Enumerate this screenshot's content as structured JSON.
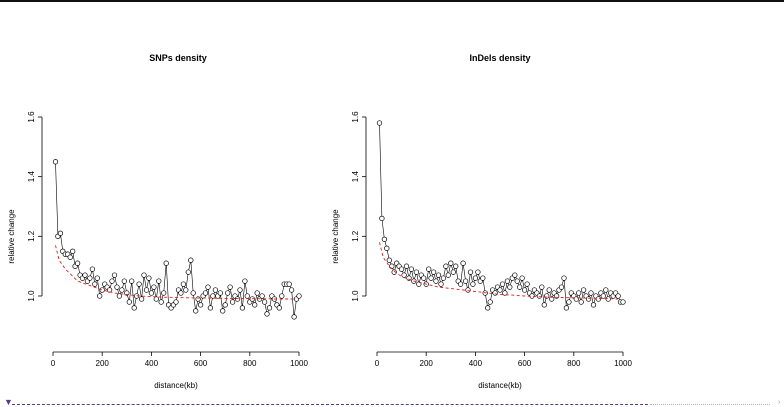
{
  "chart_data": [
    {
      "type": "line",
      "title": "SNPs density",
      "xlabel": "distance(kb)",
      "ylabel": "relative change",
      "xlim": [
        0,
        1000
      ],
      "ylim": [
        0.9,
        1.6
      ],
      "xticks": [
        0,
        200,
        400,
        600,
        800,
        1000
      ],
      "yticks": [
        1.0,
        1.2,
        1.4,
        1.6
      ],
      "grid": false,
      "series": [
        {
          "color": "#000000",
          "marker": "open-circle",
          "x": [
            10,
            20,
            30,
            40,
            50,
            60,
            70,
            80,
            90,
            100,
            110,
            120,
            130,
            140,
            150,
            160,
            170,
            180,
            190,
            200,
            210,
            220,
            230,
            240,
            250,
            260,
            270,
            280,
            290,
            300,
            310,
            320,
            330,
            340,
            350,
            360,
            370,
            380,
            390,
            400,
            410,
            420,
            430,
            440,
            450,
            460,
            470,
            480,
            490,
            500,
            510,
            520,
            530,
            540,
            550,
            560,
            570,
            580,
            590,
            600,
            610,
            620,
            630,
            640,
            650,
            660,
            670,
            680,
            690,
            700,
            710,
            720,
            730,
            740,
            750,
            760,
            770,
            780,
            790,
            800,
            810,
            820,
            830,
            840,
            850,
            860,
            870,
            880,
            890,
            900,
            910,
            920,
            930,
            940,
            950,
            960,
            970,
            980,
            990,
            1000
          ],
          "y": [
            1.45,
            1.2,
            1.21,
            1.15,
            1.14,
            1.14,
            1.13,
            1.15,
            1.1,
            1.11,
            1.07,
            1.06,
            1.07,
            1.05,
            1.06,
            1.09,
            1.04,
            1.06,
            1.0,
            1.02,
            1.04,
            1.03,
            1.02,
            1.05,
            1.07,
            1.03,
            1.0,
            1.02,
            1.05,
            1.01,
            0.98,
            1.05,
            0.96,
            1.0,
            1.04,
            0.99,
            1.07,
            1.02,
            1.06,
            1.01,
            1.03,
            0.99,
            1.05,
            0.98,
            1.01,
            1.11,
            0.97,
            0.96,
            0.97,
            0.98,
            1.02,
            1.01,
            1.04,
            1.02,
            1.08,
            1.12,
            1.01,
            0.95,
            0.99,
            0.97,
            1.0,
            1.01,
            1.03,
            0.96,
            1.0,
            1.02,
            1.0,
            1.01,
            0.95,
            0.97,
            1.01,
            1.03,
            0.98,
            1.0,
            0.99,
            1.02,
            0.96,
            1.05,
            1.0,
            0.98,
            0.99,
            0.97,
            1.01,
            0.99,
            1.0,
            0.98,
            0.94,
            0.96,
            1.0,
            0.99,
            0.97,
            0.96,
            1.0,
            1.04,
            1.04,
            1.04,
            1.02,
            0.93,
            0.99,
            1.0
          ]
        },
        {
          "color": "#e0201b",
          "style": "dashed",
          "x": [
            10,
            25,
            50,
            75,
            100,
            150,
            200,
            250,
            300,
            350,
            400,
            450,
            500,
            550,
            600,
            650,
            700,
            750,
            800,
            850,
            900,
            950,
            980
          ],
          "y": [
            1.17,
            1.12,
            1.09,
            1.07,
            1.05,
            1.035,
            1.02,
            1.01,
            1.005,
            1.0,
            0.998,
            0.996,
            0.995,
            0.994,
            0.993,
            0.993,
            0.992,
            0.992,
            0.991,
            0.991,
            0.99,
            0.99,
            0.99
          ]
        }
      ]
    },
    {
      "type": "line",
      "title": "InDels density",
      "xlabel": "distance(kb)",
      "ylabel": "relative change",
      "xlim": [
        0,
        1000
      ],
      "ylim": [
        0.9,
        1.6
      ],
      "xticks": [
        0,
        200,
        400,
        600,
        800,
        1000
      ],
      "yticks": [
        1.0,
        1.2,
        1.4,
        1.6
      ],
      "grid": false,
      "series": [
        {
          "color": "#000000",
          "marker": "open-circle",
          "x": [
            10,
            20,
            30,
            40,
            50,
            60,
            70,
            80,
            90,
            100,
            110,
            120,
            130,
            140,
            150,
            160,
            170,
            180,
            190,
            200,
            210,
            220,
            230,
            240,
            250,
            260,
            270,
            280,
            290,
            300,
            310,
            320,
            330,
            340,
            350,
            360,
            370,
            380,
            390,
            400,
            410,
            420,
            430,
            440,
            450,
            460,
            470,
            480,
            490,
            500,
            510,
            520,
            530,
            540,
            550,
            560,
            570,
            580,
            590,
            600,
            610,
            620,
            630,
            640,
            650,
            660,
            670,
            680,
            690,
            700,
            710,
            720,
            730,
            740,
            750,
            760,
            770,
            780,
            790,
            800,
            810,
            820,
            830,
            840,
            850,
            860,
            870,
            880,
            890,
            900,
            910,
            920,
            930,
            940,
            950,
            960,
            970,
            980,
            990,
            1000
          ],
          "y": [
            1.58,
            1.26,
            1.19,
            1.16,
            1.12,
            1.1,
            1.08,
            1.11,
            1.1,
            1.09,
            1.07,
            1.1,
            1.06,
            1.09,
            1.05,
            1.08,
            1.04,
            1.07,
            1.06,
            1.04,
            1.09,
            1.06,
            1.08,
            1.05,
            1.07,
            1.04,
            1.06,
            1.1,
            1.07,
            1.11,
            1.08,
            1.1,
            1.05,
            1.04,
            1.11,
            1.05,
            1.02,
            1.08,
            1.04,
            1.06,
            1.08,
            1.05,
            1.06,
            1.01,
            0.96,
            0.98,
            1.02,
            1.01,
            1.03,
            1.02,
            1.04,
            1.01,
            1.05,
            1.03,
            1.06,
            1.07,
            1.05,
            1.03,
            1.06,
            1.02,
            1.04,
            1.01,
            1.0,
            1.02,
            1.01,
            1.0,
            1.03,
            0.97,
            1.0,
            1.02,
            0.99,
            1.01,
            1.0,
            1.02,
            1.03,
            1.06,
            0.96,
            0.98,
            1.01,
            1.0,
            0.99,
            1.01,
            0.98,
            1.02,
            1.0,
            0.99,
            1.01,
            0.97,
            1.0,
            0.99,
            1.01,
            1.0,
            1.02,
            0.99,
            1.01,
            1.0,
            1.01,
            1.0,
            0.98,
            0.98
          ]
        },
        {
          "color": "#e0201b",
          "style": "dashed",
          "x": [
            10,
            25,
            50,
            75,
            100,
            150,
            200,
            250,
            300,
            350,
            400,
            450,
            500,
            550,
            600,
            650,
            700,
            750,
            800,
            850,
            900,
            950,
            980
          ],
          "y": [
            1.18,
            1.13,
            1.1,
            1.08,
            1.065,
            1.05,
            1.04,
            1.03,
            1.025,
            1.02,
            1.015,
            1.01,
            1.005,
            1.003,
            1.0,
            0.998,
            0.996,
            0.995,
            0.994,
            0.993,
            0.992,
            0.991,
            0.99
          ]
        }
      ]
    }
  ]
}
